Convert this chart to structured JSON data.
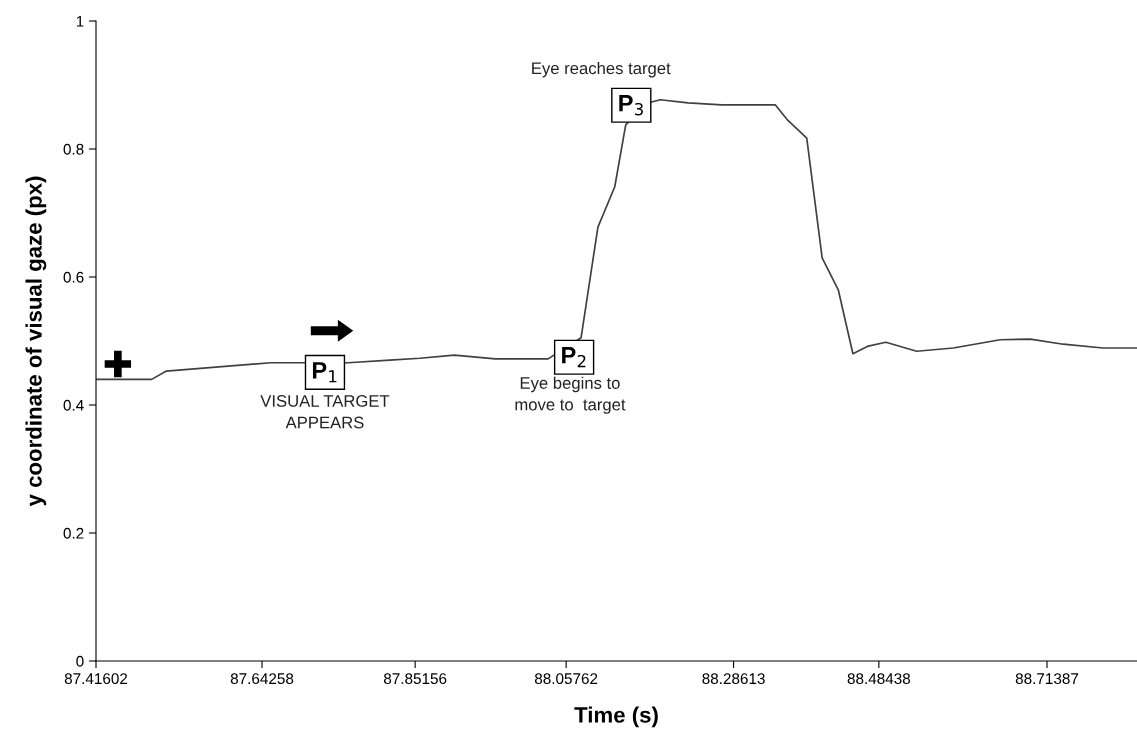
{
  "chart_data": {
    "type": "line",
    "xlabel": "Time (s)",
    "ylabel": "y coordinate of visual gaze (px)",
    "x": [
      87.41602,
      87.492,
      87.512,
      87.654,
      87.76,
      87.817,
      87.858,
      87.905,
      87.961,
      88.033,
      88.078,
      88.101,
      88.124,
      88.139,
      88.173,
      88.186,
      88.224,
      88.27,
      88.343,
      88.36,
      88.386,
      88.407,
      88.429,
      88.449,
      88.47,
      88.494,
      88.536,
      88.586,
      88.65,
      88.691,
      88.736,
      88.79,
      88.8367
    ],
    "series": [
      {
        "color": "#404040",
        "values": [
          0.44,
          0.44,
          0.453,
          0.466,
          0.466,
          0.47,
          0.473,
          0.478,
          0.472,
          0.472,
          0.505,
          0.678,
          0.741,
          0.838,
          0.873,
          0.877,
          0.872,
          0.869,
          0.869,
          0.845,
          0.817,
          0.63,
          0.58,
          0.48,
          0.492,
          0.498,
          0.484,
          0.489,
          0.502,
          0.503,
          0.495,
          0.489,
          0.489
        ]
      }
    ],
    "xlim": [
      87.41602,
      88.8367
    ],
    "xticks": [
      87.41602,
      87.64258,
      87.85156,
      88.05762,
      88.28613,
      88.48438,
      88.71387
    ],
    "ylim": [
      0,
      1
    ],
    "yticks": [
      0,
      0.2,
      0.4,
      0.6,
      0.8,
      1
    ],
    "grid": false,
    "marker": "none",
    "line_style": "solid",
    "annotations": [
      {
        "text": "P$_{1}$",
        "x": 87.7285,
        "y": 0.464
      },
      {
        "text": "VISUAL TARGET\nAPPEARS",
        "x": 87.7285,
        "y": 0.464
      },
      {
        "text": "P$_{2}$",
        "x": 88.078,
        "y": 0.505
      },
      {
        "text": "Eye begins to\nmove to  target",
        "x": 88.078,
        "y": 0.505
      },
      {
        "text": "P$_{3}$",
        "x": 88.139,
        "y": 0.838
      },
      {
        "text": "Eye reaches target",
        "x": 88.139,
        "y": 0.838
      }
    ]
  }
}
